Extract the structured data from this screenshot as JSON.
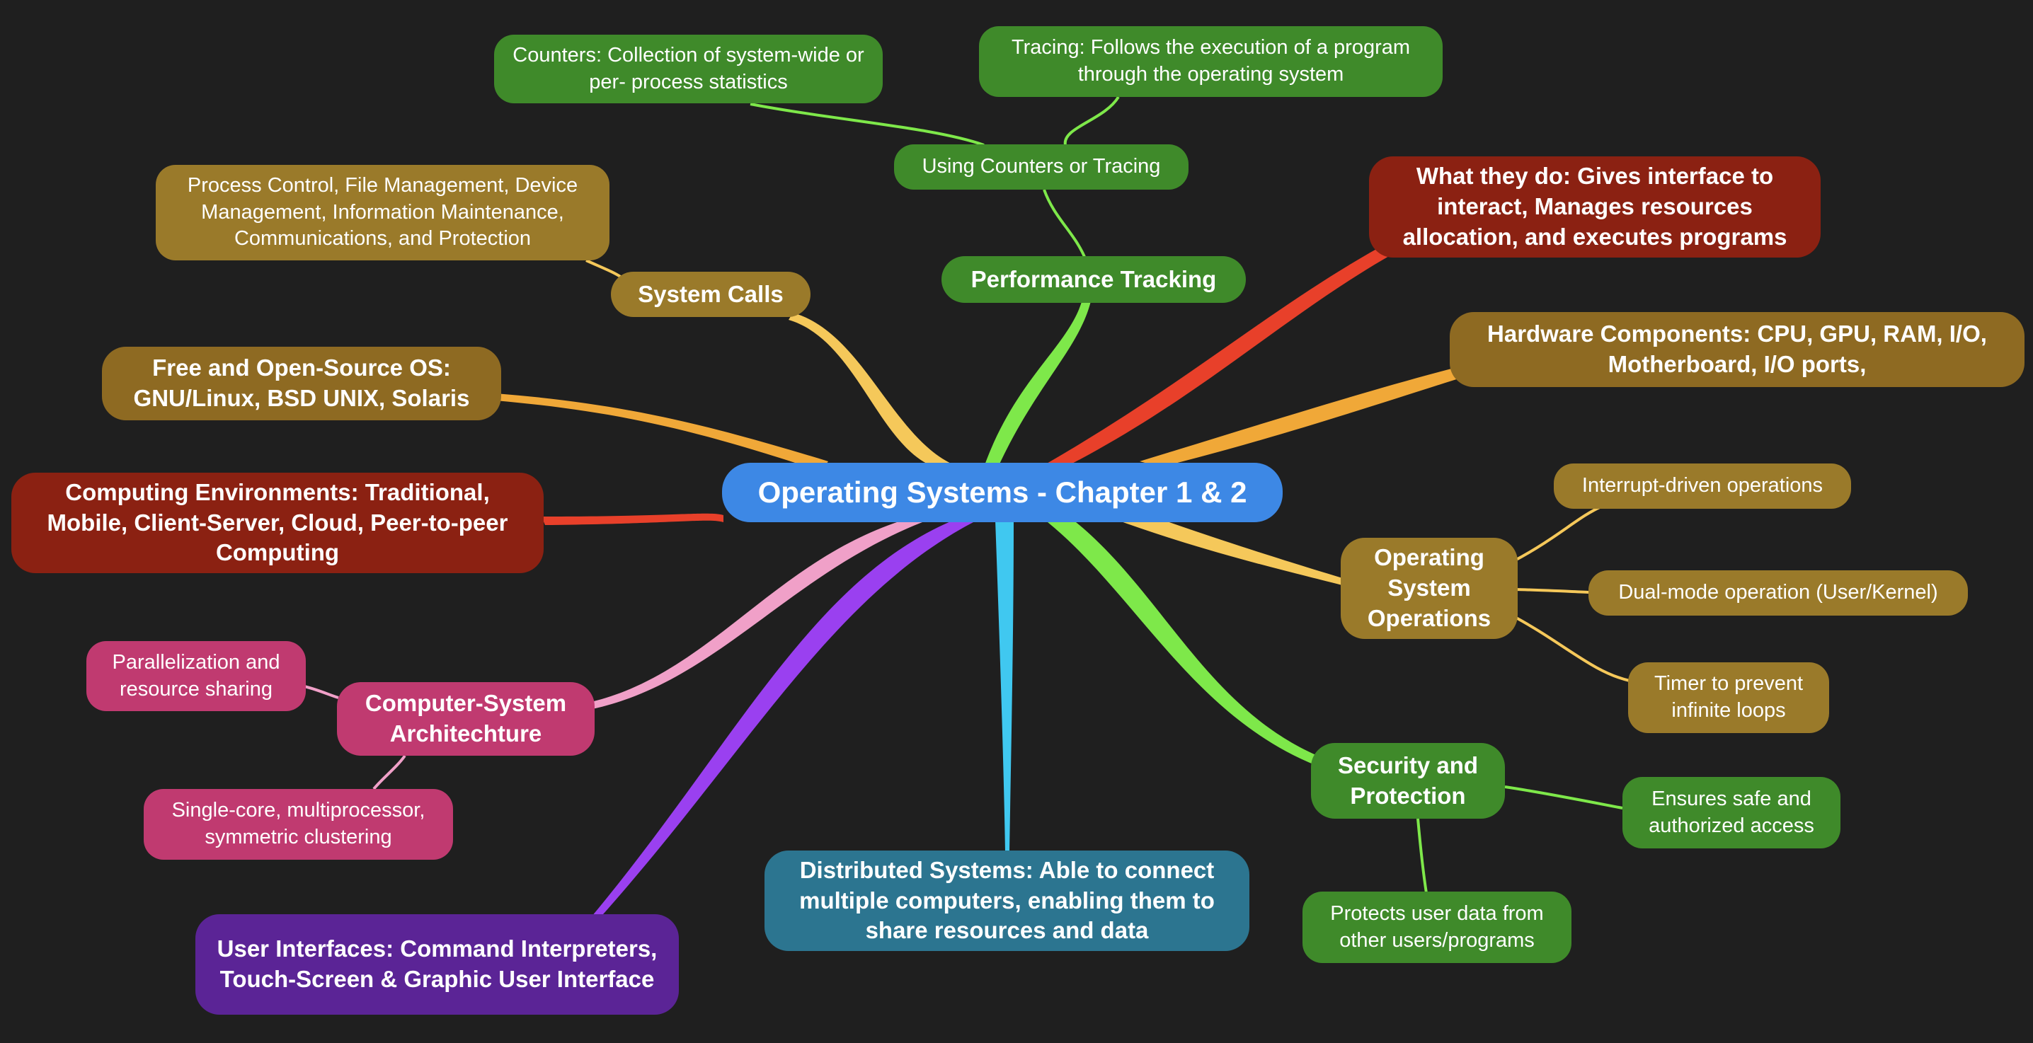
{
  "root": {
    "label": "Operating Systems - Chapter 1 & 2"
  },
  "branches": {
    "performance": {
      "label": "Performance Tracking"
    },
    "using": {
      "label": "Using Counters or Tracing"
    },
    "counters": {
      "label": "Counters: Collection of system-wide or per- process statistics"
    },
    "tracing": {
      "label": "Tracing: Follows the execution of a program through the operating system"
    },
    "syscalls": {
      "label": "System Calls"
    },
    "syscall_types": {
      "label": "Process Control, File Management, Device Management, Information Maintenance, Communications, and Protection"
    },
    "foss": {
      "label": "Free and Open-Source OS: GNU/Linux, BSD UNIX, Solaris"
    },
    "computing_env": {
      "label": "Computing Environments: Traditional, Mobile, Client-Server, Cloud, Peer-to-peer Computing"
    },
    "arch": {
      "label": "Computer-System Architechture"
    },
    "parallel": {
      "label": "Parallelization and resource sharing"
    },
    "singlecore": {
      "label": "Single-core, multiprocessor, symmetric clustering"
    },
    "ui": {
      "label": "User Interfaces: Command Interpreters, Touch-Screen & Graphic User Interface"
    },
    "distributed": {
      "label": "Distributed Systems: Able to connect multiple computers, enabling them to share resources and data"
    },
    "security": {
      "label": "Security and Protection"
    },
    "safe_access": {
      "label": "Ensures safe and authorized access"
    },
    "protects": {
      "label": "Protects user data from other users/programs"
    },
    "osops": {
      "label": "Operating System Operations"
    },
    "interrupt": {
      "label": "Interrupt-driven operations"
    },
    "dualmode": {
      "label": "Dual-mode operation (User/Kernel)"
    },
    "timer": {
      "label": "Timer to prevent infinite loops"
    },
    "hardware": {
      "label": "Hardware Components: CPU, GPU, RAM, I/O, Motherboard, I/O ports,"
    },
    "what_they_do": {
      "label": "What they do: Gives interface to interact, Manages resources allocation, and executes programs"
    }
  },
  "colors": {
    "background": "#1f1f1f",
    "root": "#3d88e5",
    "green_node": "#3f8a2a",
    "red_node": "#8b2112",
    "amber_node": "#9a7a2a",
    "gold_node": "#8e6a22",
    "pink_node": "#c03a70",
    "purple_node": "#5b2496",
    "teal_node": "#2c7590",
    "green_edge": "#7ee84a",
    "red_edge": "#e8402a",
    "orange_edge": "#f0a838",
    "yellow_edge": "#f5c85a",
    "pink_edge": "#f0a0c8",
    "purple_edge": "#9a40f0",
    "cyan_edge": "#40c8f0"
  }
}
